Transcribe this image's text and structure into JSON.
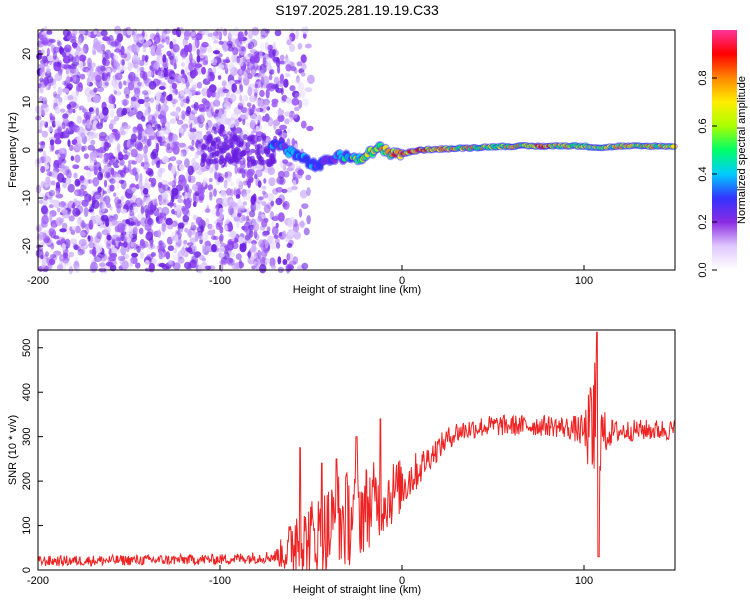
{
  "title": "S197.2025.281.19.19.C33",
  "chart_data": [
    {
      "type": "heatmap",
      "title": "",
      "xlabel": "Height of straight line (km)",
      "ylabel": "Frequency (Hz)",
      "xlim": [
        -200,
        150
      ],
      "ylim": [
        -25,
        25
      ],
      "xticks": [
        -200,
        -100,
        0,
        100
      ],
      "yticks": [
        -20,
        -10,
        0,
        10,
        20
      ],
      "noise_region_x": [
        -200,
        -50
      ],
      "noise_colors": [
        "#9b59f5",
        "#6a1fe0",
        "#c9a6ff",
        "#e2d3ff",
        "#8a3cf0"
      ],
      "signal_track": {
        "x": [
          -72,
          -65,
          -58,
          -52,
          -46,
          -40,
          -36,
          -30,
          -24,
          -18,
          -12,
          -6,
          0,
          10,
          20,
          30,
          40,
          50,
          60,
          70,
          80,
          90,
          100,
          110,
          120,
          130,
          140,
          150
        ],
        "freq": [
          1.5,
          0.5,
          -1.0,
          -2.5,
          -3.5,
          -2.0,
          -1.5,
          -1.5,
          -1.5,
          -0.8,
          0.3,
          -0.5,
          -0.8,
          0.0,
          0.2,
          0.3,
          0.5,
          0.7,
          0.8,
          0.8,
          0.8,
          0.9,
          0.8,
          0.5,
          0.8,
          0.8,
          0.8,
          0.8
        ],
        "amp": [
          0.5,
          0.5,
          0.55,
          0.55,
          0.5,
          0.45,
          0.5,
          0.6,
          0.7,
          0.75,
          0.8,
          0.85,
          0.85,
          0.9,
          0.85,
          0.8,
          0.8,
          0.75,
          0.8,
          0.85,
          0.9,
          0.8,
          0.75,
          0.7,
          0.8,
          0.8,
          0.8,
          0.75
        ]
      },
      "colorbar": {
        "label": "Normalized spectral amplitude",
        "range": [
          0,
          1
        ],
        "ticks": [
          0.0,
          0.2,
          0.4,
          0.6,
          0.8
        ],
        "tick_labels": [
          "0.0",
          "0.2",
          "0.4",
          "0.6",
          "0.8"
        ],
        "colors": [
          "#ffffff",
          "#e0c8ff",
          "#8a2be2",
          "#3333ff",
          "#00ccff",
          "#00ff66",
          "#aaff00",
          "#ffee00",
          "#ff8800",
          "#ff0000",
          "#ff3399"
        ]
      }
    },
    {
      "type": "line",
      "title": "",
      "xlabel": "Height of straight line (km)",
      "ylabel": "SNR (10 * v/v)",
      "xlim": [
        -200,
        150
      ],
      "ylim": [
        0,
        540
      ],
      "xticks": [
        -200,
        -100,
        0,
        100
      ],
      "yticks": [
        0,
        100,
        200,
        300,
        400,
        500
      ],
      "line_color": "#ee2222",
      "series": [
        {
          "name": "SNR",
          "x": [
            -200,
            -150,
            -100,
            -70,
            -62,
            -58,
            -55,
            -50,
            -45,
            -40,
            -35,
            -30,
            -25,
            -20,
            -15,
            -10,
            -5,
            0,
            5,
            10,
            15,
            20,
            25,
            30,
            40,
            50,
            60,
            70,
            80,
            90,
            95,
            100,
            104,
            106,
            108,
            110,
            115,
            120,
            130,
            140,
            150
          ],
          "values": [
            20,
            22,
            24,
            30,
            45,
            80,
            60,
            75,
            80,
            90,
            105,
            115,
            130,
            140,
            155,
            160,
            175,
            190,
            210,
            230,
            255,
            275,
            295,
            310,
            320,
            325,
            325,
            325,
            325,
            320,
            318,
            310,
            310,
            315,
            320,
            305,
            310,
            312,
            315,
            315,
            315
          ],
          "noise_amp": [
            12,
            12,
            12,
            14,
            60,
            110,
            80,
            90,
            95,
            110,
            120,
            110,
            110,
            100,
            90,
            80,
            75,
            60,
            50,
            40,
            30,
            28,
            26,
            25,
            24,
            24,
            24,
            24,
            24,
            25,
            30,
            40,
            120,
            220,
            180,
            60,
            30,
            25,
            24,
            24,
            24
          ]
        }
      ],
      "peaks": [
        {
          "x": -56,
          "value": 275
        },
        {
          "x": -44,
          "value": 240
        },
        {
          "x": -36,
          "value": 250
        },
        {
          "x": -25,
          "value": 300
        },
        {
          "x": -12,
          "value": 340
        },
        {
          "x": 107,
          "value": 535
        },
        {
          "x": 108,
          "value": 30
        }
      ]
    }
  ]
}
